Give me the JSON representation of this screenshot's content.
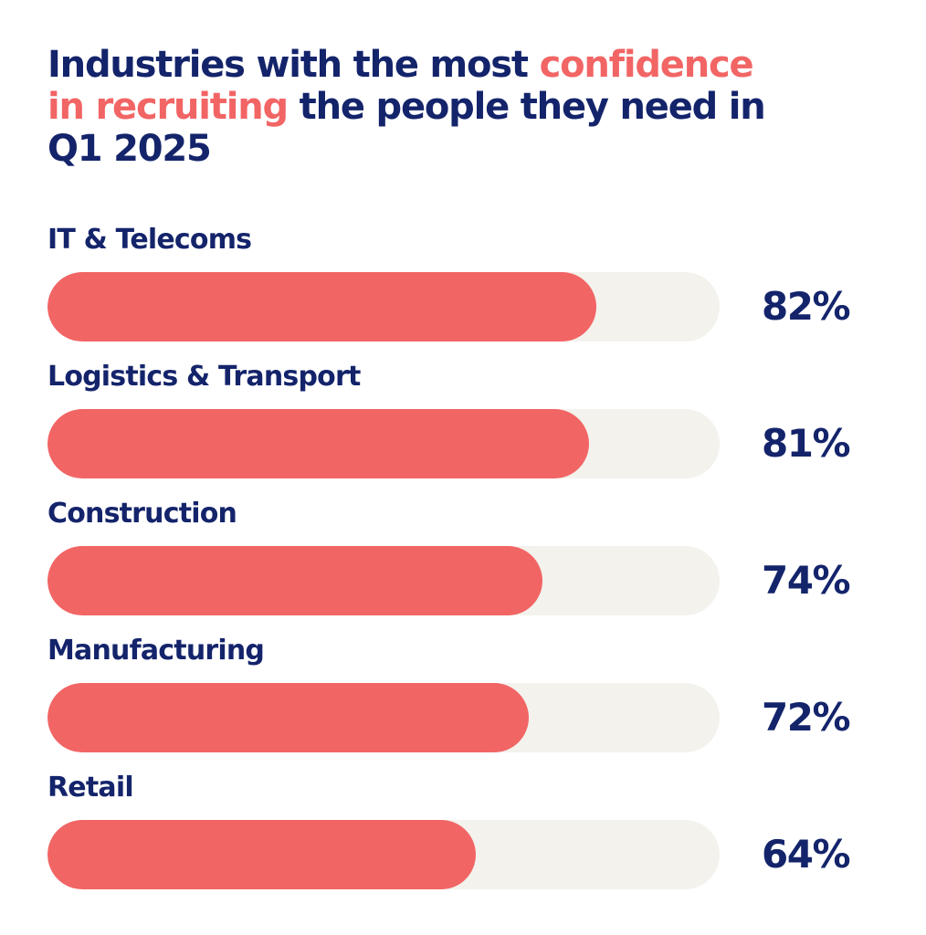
{
  "colors": {
    "text": "#14246b",
    "accent": "#f26565",
    "track": "#f3f2ec"
  },
  "chart_data": {
    "type": "bar",
    "orientation": "horizontal",
    "title_parts": [
      {
        "text": "Industries with the most ",
        "highlight": false
      },
      {
        "text": "confidence in recruiting",
        "highlight": true
      },
      {
        "text": " the people they need in Q1 2025",
        "highlight": false
      }
    ],
    "categories": [
      "IT & Telecoms",
      "Logistics & Transport",
      "Construction",
      "Manufacturing",
      "Retail"
    ],
    "values": [
      82,
      81,
      74,
      72,
      64
    ],
    "value_labels": [
      "82%",
      "81%",
      "74%",
      "72%",
      "64%"
    ],
    "ylim": [
      0,
      100
    ],
    "unit": "%"
  }
}
